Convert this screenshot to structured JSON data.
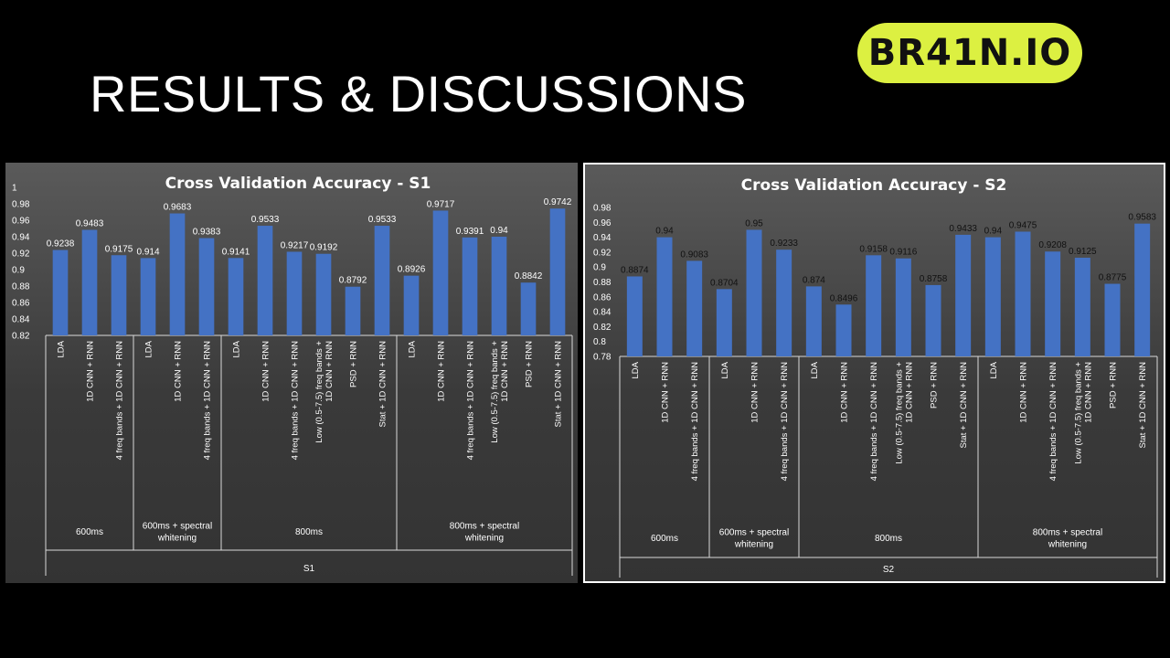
{
  "slide": {
    "title": "RESULTS & DISCUSSIONS",
    "logo_text": "BR41N.IO"
  },
  "colors": {
    "background": "#000000",
    "logo_bg": "#dcf041",
    "bar": "#4472c4",
    "panel_border": "#ffffff"
  },
  "chart_data": [
    {
      "type": "bar",
      "title": "Cross Validation Accuracy - S1",
      "ylim": [
        0.82,
        1.0
      ],
      "yticks": [
        "0.82",
        "0.84",
        "0.86",
        "0.88",
        "0.9",
        "0.92",
        "0.94",
        "0.96",
        "0.98",
        "1"
      ],
      "grid": false,
      "label_color": "#ffffff",
      "subject": "S1",
      "groups": [
        {
          "name": "600ms",
          "count": 3
        },
        {
          "name": "600ms + spectral whitening",
          "count": 3
        },
        {
          "name": "800ms",
          "count": 6
        },
        {
          "name": "800ms + spectral whitening",
          "count": 6
        }
      ],
      "categories": [
        "LDA",
        "1D CNN + RNN",
        "4 freq bands + 1D CNN + RNN",
        "LDA",
        "1D CNN + RNN",
        "4 freq bands + 1D CNN + RNN",
        "LDA",
        "1D CNN + RNN",
        "4 freq bands + 1D CNN + RNN",
        "Low (0.5-7.5) freq bands + 1D CNN + RNN",
        "PSD + RNN",
        "Stat + 1D CNN + RNN",
        "LDA",
        "1D CNN + RNN",
        "4 freq bands + 1D CNN + RNN",
        "Low (0.5-7.5) freq bands + 1D CNN + RNN",
        "PSD + RNN",
        "Stat + 1D CNN + RNN"
      ],
      "values": [
        0.9238,
        0.9483,
        0.9175,
        0.914,
        0.9683,
        0.9383,
        0.9141,
        0.9533,
        0.9217,
        0.9192,
        0.8792,
        0.9533,
        0.8926,
        0.9717,
        0.9391,
        0.94,
        0.8842,
        0.9742
      ],
      "labels": [
        "0.9238",
        "0.9483",
        "0.9175",
        "0.914",
        "0.9683",
        "0.9383",
        "0.9141",
        "0.9533",
        "0.9217",
        "0.9192",
        "0.8792",
        "0.9533",
        "0.8926",
        "0.9717",
        "0.9391",
        "0.94",
        "0.8842",
        "0.9742"
      ]
    },
    {
      "type": "bar",
      "title": "Cross Validation Accuracy - S2",
      "ylim": [
        0.78,
        0.98
      ],
      "yticks": [
        "0.78",
        "0.8",
        "0.82",
        "0.84",
        "0.86",
        "0.88",
        "0.9",
        "0.92",
        "0.94",
        "0.96",
        "0.98"
      ],
      "grid": false,
      "label_color": "#111111",
      "subject": "S2",
      "groups": [
        {
          "name": "600ms",
          "count": 3
        },
        {
          "name": "600ms + spectral whitening",
          "count": 3
        },
        {
          "name": "800ms",
          "count": 6
        },
        {
          "name": "800ms + spectral whitening",
          "count": 6
        }
      ],
      "categories": [
        "LDA",
        "1D CNN + RNN",
        "4 freq bands + 1D CNN + RNN",
        "LDA",
        "1D CNN + RNN",
        "4 freq bands + 1D CNN + RNN",
        "LDA",
        "1D CNN + RNN",
        "4 freq bands + 1D CNN + RNN",
        "Low (0.5-7.5) freq bands + 1D CNN + RNN",
        "PSD + RNN",
        "Stat + 1D CNN + RNN",
        "LDA",
        "1D CNN + RNN",
        "4 freq bands + 1D CNN + RNN",
        "Low (0.5-7.5) freq bands + 1D CNN + RNN",
        "PSD + RNN",
        "Stat + 1D CNN + RNN"
      ],
      "values": [
        0.8874,
        0.94,
        0.9083,
        0.8704,
        0.95,
        0.9233,
        0.874,
        0.8496,
        0.9158,
        0.9116,
        0.8758,
        0.9433,
        0.94,
        0.9475,
        0.9208,
        0.9125,
        0.8775,
        0.9583
      ],
      "labels": [
        "0.8874",
        "0.94",
        "0.9083",
        "0.8704",
        "0.95",
        "0.9233",
        "0.874",
        "0.8496",
        "0.9158",
        "0.9116",
        "0.8758",
        "0.9433",
        "0.94",
        "0.9475",
        "0.9208",
        "0.9125",
        "0.8775",
        "0.9583"
      ]
    }
  ]
}
